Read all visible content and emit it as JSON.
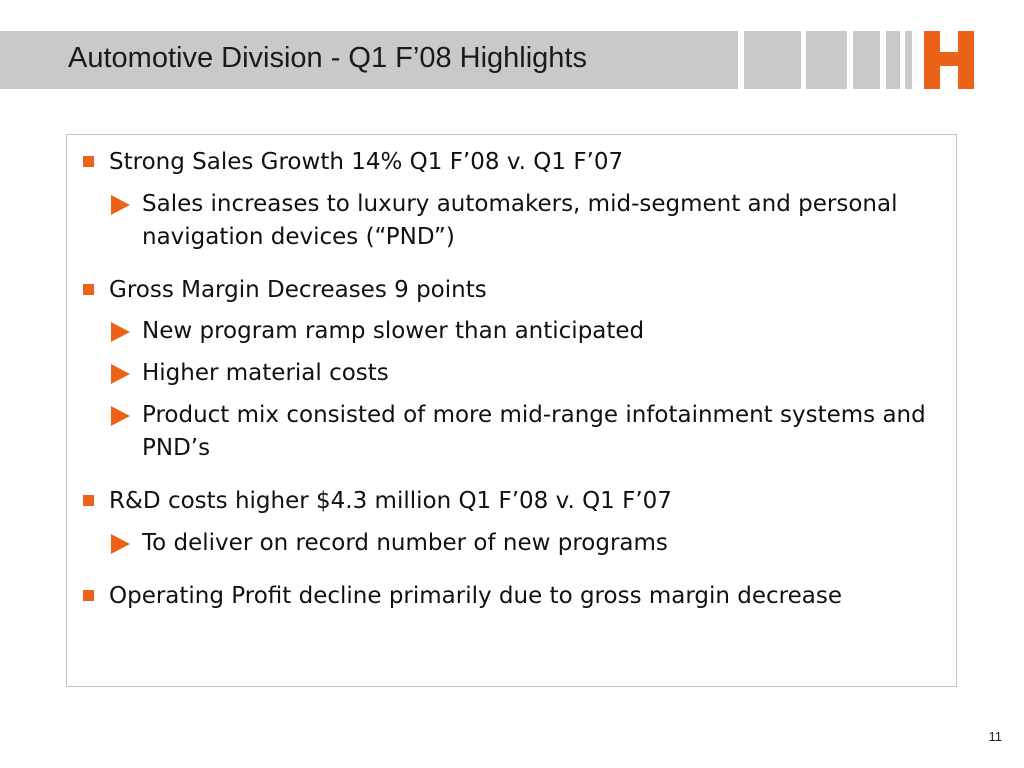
{
  "slide": {
    "title": "Automotive Division - Q1 F’08 Highlights",
    "page_number": "11"
  },
  "logo": {
    "icon": "harman-h-logo",
    "color": "#ec6219"
  },
  "colors": {
    "accent": "#ec6219",
    "title_bar": "#c9c9c9",
    "box_border": "#c4c4c4"
  },
  "bullets": [
    {
      "text": "Strong Sales Growth 14% Q1 F’08 v. Q1 F’07",
      "sub": [
        "Sales increases to luxury automakers, mid-segment and personal navigation devices (“PND”)"
      ]
    },
    {
      "text": "Gross Margin Decreases 9 points",
      "sub": [
        "New program ramp slower than anticipated",
        "Higher material costs",
        "Product mix consisted of more mid-range infotainment systems and PND’s"
      ]
    },
    {
      "text": "R&D costs higher $4.3 million Q1 F’08 v. Q1 F’07",
      "sub": [
        "To deliver on record number of new programs"
      ]
    },
    {
      "text": "Operating Profit decline primarily due to gross margin decrease",
      "sub": []
    }
  ]
}
